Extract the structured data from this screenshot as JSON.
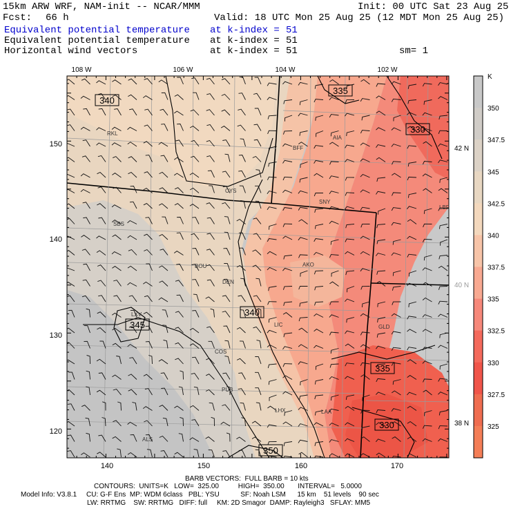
{
  "header": {
    "model": "15km ARW WRF, NAM-init -- NCAR/MMM",
    "init": "Init: 00 UTC Sat 23 Aug 25",
    "fcst_label": "Fcst:",
    "fcst_value": "66 h",
    "valid": "Valid: 18 UTC Mon 25 Aug 25 (12 MDT Mon 25 Aug 25)",
    "fields": [
      {
        "name": "Equivalent potential temperature",
        "level": "at k-index =",
        "k": "51",
        "color": "#0000cc"
      },
      {
        "name": "Equivalent potential temperature",
        "level": "at k-index =",
        "k": "51",
        "color": "#000000"
      },
      {
        "name": "Horizontal wind vectors",
        "level": "at k-index =",
        "k": "51",
        "color": "#000000"
      }
    ],
    "sm": "sm= 1"
  },
  "map": {
    "lon_labels": [
      "108 W",
      "106 W",
      "104 W",
      "102 W"
    ],
    "lat_labels": [
      "42 N",
      "40 N",
      "38 N"
    ],
    "grid_x_ticks": [
      "140",
      "150",
      "160",
      "170"
    ],
    "grid_y_ticks": [
      "150",
      "140",
      "130",
      "120"
    ],
    "cities": [
      "RKL",
      "CYS",
      "BFF",
      "AIA",
      "SNY",
      "LBF",
      "SBS",
      "BOU",
      "DEN",
      "AKO",
      "LXV",
      "LIC",
      "GLD",
      "COS",
      "PUB",
      "LHX",
      "LAA",
      "ALS"
    ],
    "contour_labels": [
      "340",
      "335",
      "330",
      "340",
      "345",
      "335",
      "330",
      "350"
    ]
  },
  "colorbar": {
    "unit": "K",
    "labels": [
      "350",
      "347.5",
      "345",
      "342.5",
      "340",
      "337.5",
      "335",
      "332.5",
      "330",
      "327.5",
      "325"
    ],
    "colors": [
      "#c8c8c8",
      "#d0ccc7",
      "#dcd2c6",
      "#e8d7c2",
      "#f3d8bd",
      "#f7c4a8",
      "#f8a991",
      "#f6887a",
      "#f46a5c",
      "#f0554a",
      "#ef6d50",
      "#f47e57"
    ]
  },
  "footer": {
    "barb": "BARB VECTORS:  FULL BARB = 10 kts",
    "contours": "CONTOURS:  UNITS=K   LOW=  325.00          HIGH=  350.00       INTERVAL=   5.0000",
    "info1": "Model Info: V3.8.1     CU: G-F Ens  MP: WDM 6class   PBL: YSU           SF: Noah LSM      15 km    51 levels    90 sec",
    "info2": "LW: RRTMG    SW: RRTMG   DIFF: full     KM: 2D Smagor  DAMP: Rayleigh3   SFLAY: MM5"
  }
}
